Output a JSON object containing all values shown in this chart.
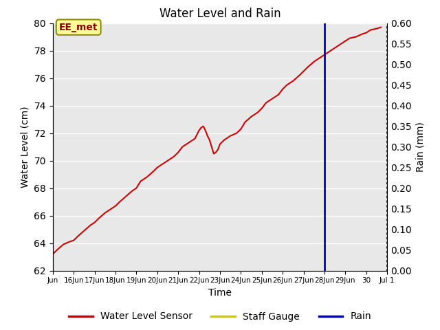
{
  "title": "Water Level and Rain",
  "xlabel": "Time",
  "ylabel_left": "Water Level (cm)",
  "ylabel_right": "Rain (mm)",
  "ylim_left": [
    62,
    80
  ],
  "ylim_right": [
    0.0,
    0.6
  ],
  "yticks_left": [
    62,
    64,
    66,
    68,
    70,
    72,
    74,
    76,
    78,
    80
  ],
  "yticks_right": [
    0.0,
    0.05,
    0.1,
    0.15,
    0.2,
    0.25,
    0.3,
    0.35,
    0.4,
    0.45,
    0.5,
    0.55,
    0.6
  ],
  "annotation_text": "EE_met",
  "vline_x": 28.0,
  "legend_labels": [
    "Water Level Sensor",
    "Staff Gauge",
    "Rain"
  ],
  "legend_colors": [
    "#cc0000",
    "#cccc00",
    "#0000cc"
  ],
  "bg_color": "#e8e8e8",
  "line_color": "#cc0000",
  "vline_color": "#0000cc",
  "water_level_data": [
    [
      15,
      63.2
    ],
    [
      15.2,
      63.5
    ],
    [
      15.5,
      63.9
    ],
    [
      15.8,
      64.1
    ],
    [
      16.0,
      64.2
    ],
    [
      16.2,
      64.5
    ],
    [
      16.5,
      64.9
    ],
    [
      16.8,
      65.3
    ],
    [
      17.0,
      65.5
    ],
    [
      17.2,
      65.8
    ],
    [
      17.5,
      66.2
    ],
    [
      17.8,
      66.5
    ],
    [
      18.0,
      66.7
    ],
    [
      18.2,
      67.0
    ],
    [
      18.5,
      67.4
    ],
    [
      18.8,
      67.8
    ],
    [
      19.0,
      68.0
    ],
    [
      19.2,
      68.5
    ],
    [
      19.5,
      68.8
    ],
    [
      19.8,
      69.2
    ],
    [
      20.0,
      69.5
    ],
    [
      20.2,
      69.7
    ],
    [
      20.5,
      70.0
    ],
    [
      20.8,
      70.3
    ],
    [
      21.0,
      70.6
    ],
    [
      21.2,
      71.0
    ],
    [
      21.5,
      71.3
    ],
    [
      21.8,
      71.6
    ],
    [
      22.0,
      72.2
    ],
    [
      22.1,
      72.4
    ],
    [
      22.2,
      72.5
    ],
    [
      22.3,
      72.2
    ],
    [
      22.4,
      71.8
    ],
    [
      22.5,
      71.5
    ],
    [
      22.6,
      71.0
    ],
    [
      22.7,
      70.5
    ],
    [
      22.8,
      70.6
    ],
    [
      22.9,
      70.8
    ],
    [
      23.0,
      71.2
    ],
    [
      23.2,
      71.5
    ],
    [
      23.5,
      71.8
    ],
    [
      23.8,
      72.0
    ],
    [
      24.0,
      72.3
    ],
    [
      24.2,
      72.8
    ],
    [
      24.5,
      73.2
    ],
    [
      24.8,
      73.5
    ],
    [
      25.0,
      73.8
    ],
    [
      25.2,
      74.2
    ],
    [
      25.5,
      74.5
    ],
    [
      25.8,
      74.8
    ],
    [
      26.0,
      75.2
    ],
    [
      26.2,
      75.5
    ],
    [
      26.5,
      75.8
    ],
    [
      26.8,
      76.2
    ],
    [
      27.0,
      76.5
    ],
    [
      27.2,
      76.8
    ],
    [
      27.5,
      77.2
    ],
    [
      27.8,
      77.5
    ],
    [
      28.0,
      77.7
    ],
    [
      28.2,
      77.9
    ],
    [
      28.5,
      78.2
    ],
    [
      28.8,
      78.5
    ],
    [
      29.0,
      78.7
    ],
    [
      29.2,
      78.9
    ],
    [
      29.5,
      79.0
    ],
    [
      29.8,
      79.2
    ],
    [
      30.0,
      79.3
    ],
    [
      30.2,
      79.5
    ],
    [
      30.5,
      79.6
    ],
    [
      30.7,
      79.7
    ]
  ],
  "xtick_positions": [
    15,
    16,
    17,
    18,
    19,
    20,
    21,
    22,
    23,
    24,
    25,
    26,
    27,
    28,
    29,
    30,
    31
  ],
  "xtick_labels": [
    "Jun",
    "16Jun",
    "17Jun",
    "18Jun",
    "19Jun",
    "20Jun",
    "21Jun",
    "22Jun",
    "23Jun",
    "24Jun",
    "25Jun",
    "26Jun",
    "27Jun",
    "28Jun",
    "29Jun",
    "30",
    "Jul 1"
  ],
  "xlim": [
    15,
    31
  ]
}
